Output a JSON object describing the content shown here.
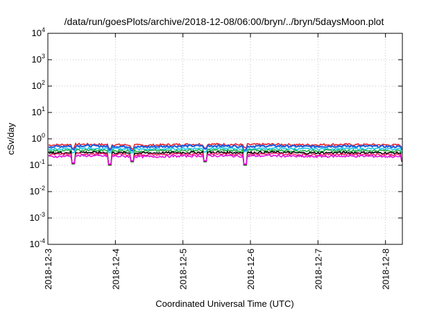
{
  "chart_data": {
    "type": "line",
    "title": "/data/run/goesPlots/archive/2018-12-08/06:00/bryn/../bryn/5daysMoon.plot",
    "xlabel": "Coordinated Universal Time (UTC)",
    "ylabel": "cSv/day",
    "y_scale": "log",
    "ylim": [
      0.0001,
      10000
    ],
    "y_ticks": [
      {
        "value": 0.0001,
        "base": "10",
        "exp": "-4"
      },
      {
        "value": 0.001,
        "base": "10",
        "exp": "-3"
      },
      {
        "value": 0.01,
        "base": "10",
        "exp": "-2"
      },
      {
        "value": 0.1,
        "base": "10",
        "exp": "-1"
      },
      {
        "value": 1,
        "base": "10",
        "exp": "0"
      },
      {
        "value": 10,
        "base": "10",
        "exp": "1"
      },
      {
        "value": 100,
        "base": "10",
        "exp": "2"
      },
      {
        "value": 1000,
        "base": "10",
        "exp": "3"
      },
      {
        "value": 10000,
        "base": "10",
        "exp": "4"
      }
    ],
    "xlim": [
      "2018-12-03",
      "2018-12-08 06:00"
    ],
    "x_ticks": [
      "2018-12-3",
      "2018-12-4",
      "2018-12-5",
      "2018-12-6",
      "2018-12-7",
      "2018-12-8"
    ],
    "grid": true,
    "legend": "none",
    "series": [
      {
        "color": "#e8202a",
        "level": 0.6,
        "x": [
          "2018-12-03 00:00",
          "2018-12-03 12:00",
          "2018-12-04 00:00",
          "2018-12-04 12:00",
          "2018-12-05 00:00",
          "2018-12-05 12:00",
          "2018-12-06 00:00",
          "2018-12-06 12:00",
          "2018-12-07 00:00",
          "2018-12-07 12:00",
          "2018-12-08 00:00",
          "2018-12-08 06:00"
        ],
        "values": [
          0.58,
          0.62,
          0.6,
          0.57,
          0.61,
          0.63,
          0.6,
          0.62,
          0.59,
          0.61,
          0.6,
          0.58
        ]
      },
      {
        "color": "#1f5fe0",
        "level": 0.52,
        "x": [
          "2018-12-03 00:00",
          "2018-12-03 12:00",
          "2018-12-04 00:00",
          "2018-12-04 12:00",
          "2018-12-05 00:00",
          "2018-12-05 12:00",
          "2018-12-06 00:00",
          "2018-12-06 12:00",
          "2018-12-07 00:00",
          "2018-12-07 12:00",
          "2018-12-08 00:00",
          "2018-12-08 06:00"
        ],
        "values": [
          0.5,
          0.55,
          0.52,
          0.49,
          0.53,
          0.55,
          0.52,
          0.54,
          0.51,
          0.53,
          0.52,
          0.5
        ]
      },
      {
        "color": "#1fc8e8",
        "level": 0.42,
        "x": [
          "2018-12-03 00:00",
          "2018-12-03 12:00",
          "2018-12-04 00:00",
          "2018-12-04 12:00",
          "2018-12-05 00:00",
          "2018-12-05 12:00",
          "2018-12-06 00:00",
          "2018-12-06 12:00",
          "2018-12-07 00:00",
          "2018-12-07 12:00",
          "2018-12-08 00:00",
          "2018-12-08 06:00"
        ],
        "values": [
          0.41,
          0.43,
          0.42,
          0.4,
          0.42,
          0.44,
          0.42,
          0.43,
          0.41,
          0.42,
          0.42,
          0.41
        ]
      },
      {
        "color": "#22b04a",
        "level": 0.36,
        "x": [
          "2018-12-03 00:00",
          "2018-12-03 12:00",
          "2018-12-04 00:00",
          "2018-12-04 12:00",
          "2018-12-05 00:00",
          "2018-12-05 12:00",
          "2018-12-06 00:00",
          "2018-12-06 12:00",
          "2018-12-07 00:00",
          "2018-12-07 12:00",
          "2018-12-08 00:00",
          "2018-12-08 06:00"
        ],
        "values": [
          0.35,
          0.37,
          0.36,
          0.35,
          0.36,
          0.37,
          0.36,
          0.37,
          0.35,
          0.36,
          0.36,
          0.35
        ]
      },
      {
        "color": "#000000",
        "level": 0.3,
        "x": [
          "2018-12-03 00:00",
          "2018-12-03 12:00",
          "2018-12-04 00:00",
          "2018-12-04 12:00",
          "2018-12-05 00:00",
          "2018-12-05 12:00",
          "2018-12-06 00:00",
          "2018-12-06 12:00",
          "2018-12-07 00:00",
          "2018-12-07 12:00",
          "2018-12-08 00:00",
          "2018-12-08 06:00"
        ],
        "values": [
          0.29,
          0.31,
          0.3,
          0.29,
          0.3,
          0.31,
          0.3,
          0.31,
          0.29,
          0.3,
          0.3,
          0.29
        ]
      },
      {
        "color": "#f0206a",
        "level": 0.26,
        "x": [
          "2018-12-03 00:00",
          "2018-12-03 12:00",
          "2018-12-04 00:00",
          "2018-12-04 12:00",
          "2018-12-05 00:00",
          "2018-12-05 12:00",
          "2018-12-06 00:00",
          "2018-12-06 12:00",
          "2018-12-07 00:00",
          "2018-12-07 12:00",
          "2018-12-08 00:00",
          "2018-12-08 06:00"
        ],
        "values": [
          0.25,
          0.27,
          0.26,
          0.25,
          0.26,
          0.27,
          0.26,
          0.27,
          0.25,
          0.26,
          0.26,
          0.25
        ]
      },
      {
        "color": "#e010e0",
        "level": 0.22,
        "x": [
          "2018-12-03 00:00",
          "2018-12-03 12:00",
          "2018-12-04 00:00",
          "2018-12-04 12:00",
          "2018-12-05 00:00",
          "2018-12-05 12:00",
          "2018-12-06 00:00",
          "2018-12-06 12:00",
          "2018-12-07 00:00",
          "2018-12-07 12:00",
          "2018-12-08 00:00",
          "2018-12-08 06:00"
        ],
        "values": [
          0.21,
          0.23,
          0.22,
          0.21,
          0.22,
          0.23,
          0.22,
          0.23,
          0.21,
          0.22,
          0.22,
          0.21
        ]
      }
    ],
    "dips": [
      {
        "x": "2018-12-03 09:00",
        "value": 0.1
      },
      {
        "x": "2018-12-03 22:00",
        "value": 0.09
      },
      {
        "x": "2018-12-04 06:00",
        "value": 0.12
      },
      {
        "x": "2018-12-05 08:00",
        "value": 0.12
      },
      {
        "x": "2018-12-05 22:00",
        "value": 0.09
      },
      {
        "x": "2018-12-08 06:00",
        "value": 0.12
      }
    ]
  }
}
